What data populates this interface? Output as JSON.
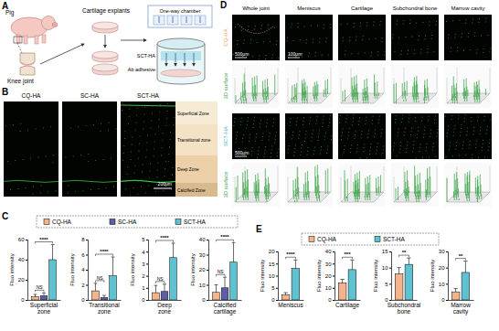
{
  "figure": {
    "panel_labels": [
      "A",
      "B",
      "C",
      "D",
      "E"
    ],
    "panel_a": {
      "labels": [
        "Pig",
        "Knee joint",
        "Cartilage explants",
        "One-way chamber",
        "SCT-HA",
        "Ab adhesive"
      ]
    },
    "panel_b": {
      "columns": [
        "CQ-HA",
        "SC-HA",
        "SCT-HA"
      ],
      "zones": [
        "Superficial Zone",
        "Transitional zone",
        "Deep Zone",
        "Calcified Zone"
      ],
      "scale_bar": "200μm"
    },
    "panel_d": {
      "columns": [
        "Whole joint",
        "Meniscus",
        "Cartilage",
        "Subchondral bone",
        "Marrow cavity"
      ],
      "rows": [
        "CQ-HA",
        "3D surface",
        "SCT-HA",
        "3D surface"
      ],
      "scale_bars": [
        "500μm",
        "100μm",
        "500μm"
      ]
    }
  },
  "chart_data": [
    {
      "type": "bar",
      "categories": [
        "Superficial zone"
      ],
      "ylabel": "Fluo intensity",
      "ylim": [
        0,
        60
      ],
      "yticks": [
        0,
        20,
        40,
        60
      ],
      "series": [
        {
          "name": "CQ-HA",
          "color": "#f2b38d",
          "values": [
            3
          ],
          "errors": [
            2.5
          ]
        },
        {
          "name": "SC-HA",
          "color": "#5c5fa6",
          "values": [
            4
          ],
          "errors": [
            3
          ]
        },
        {
          "name": "SCT-HA",
          "color": "#5ec2d0",
          "values": [
            40
          ],
          "errors": [
            15
          ]
        }
      ],
      "annotations": [
        "NS",
        "****"
      ]
    },
    {
      "type": "bar",
      "categories": [
        "Transitional zone"
      ],
      "ylabel": "Fluo intensity",
      "ylim": [
        0,
        8
      ],
      "yticks": [
        0,
        2,
        4,
        6,
        8
      ],
      "series": [
        {
          "color": "#f2b38d",
          "values": [
            1.2
          ],
          "errors": [
            1
          ]
        },
        {
          "color": "#5c5fa6",
          "values": [
            0.3
          ],
          "errors": [
            0.3
          ]
        },
        {
          "color": "#5ec2d0",
          "values": [
            3.2
          ],
          "errors": [
            2.5
          ]
        }
      ],
      "annotations": [
        "NS",
        "****"
      ]
    },
    {
      "type": "bar",
      "categories": [
        "Deep zone"
      ],
      "ylabel": "Fluo intensity",
      "ylim": [
        0,
        5
      ],
      "yticks": [
        0,
        1,
        2,
        3,
        4,
        5
      ],
      "series": [
        {
          "color": "#f2b38d",
          "values": [
            0.6
          ],
          "errors": [
            0.6
          ]
        },
        {
          "color": "#5c5fa6",
          "values": [
            0.7
          ],
          "errors": [
            0.6
          ]
        },
        {
          "color": "#5ec2d0",
          "values": [
            3.5
          ],
          "errors": [
            1.2
          ]
        }
      ],
      "annotations": [
        "NS",
        "****"
      ]
    },
    {
      "type": "bar",
      "categories": [
        "Calcified cartilage"
      ],
      "ylabel": "Fluo intensity",
      "ylim": [
        0,
        40
      ],
      "yticks": [
        0,
        10,
        20,
        30,
        40
      ],
      "series": [
        {
          "color": "#f2b38d",
          "values": [
            5
          ],
          "errors": [
            5
          ]
        },
        {
          "color": "#5c5fa6",
          "values": [
            8
          ],
          "errors": [
            7
          ]
        },
        {
          "color": "#5ec2d0",
          "values": [
            25
          ],
          "errors": [
            13
          ]
        }
      ],
      "annotations": [
        "NS",
        "****"
      ]
    },
    {
      "type": "bar",
      "categories": [
        "Meniscus"
      ],
      "ylabel": "Fluo intensity",
      "ylim": [
        0,
        20
      ],
      "yticks": [
        0,
        5,
        10,
        15,
        20
      ],
      "series": [
        {
          "name": "CQ-HA",
          "color": "#f2b38d",
          "values": [
            2
          ],
          "errors": [
            1
          ]
        },
        {
          "name": "SCT-HA",
          "color": "#5ec2d0",
          "values": [
            13
          ],
          "errors": [
            3.5
          ]
        }
      ],
      "annotations": [
        "****"
      ]
    },
    {
      "type": "bar",
      "categories": [
        "Cartilage"
      ],
      "ylabel": "Fluo intensity",
      "ylim": [
        0,
        40
      ],
      "yticks": [
        0,
        10,
        20,
        30,
        40
      ],
      "series": [
        {
          "color": "#f2b38d",
          "values": [
            14
          ],
          "errors": [
            3
          ]
        },
        {
          "color": "#5ec2d0",
          "values": [
            25
          ],
          "errors": [
            8
          ]
        }
      ],
      "annotations": [
        "***"
      ]
    },
    {
      "type": "bar",
      "categories": [
        "Subchondral bone"
      ],
      "ylabel": "Fluo intensity",
      "ylim": [
        0,
        15
      ],
      "yticks": [
        0,
        5,
        10,
        15
      ],
      "series": [
        {
          "color": "#f2b38d",
          "values": [
            8
          ],
          "errors": [
            2
          ]
        },
        {
          "color": "#5ec2d0",
          "values": [
            11
          ],
          "errors": [
            2
          ]
        }
      ],
      "annotations": [
        "**"
      ]
    },
    {
      "type": "bar",
      "categories": [
        "Marrow cavity"
      ],
      "ylabel": "Fluo intensity",
      "ylim": [
        0,
        30
      ],
      "yticks": [
        0,
        10,
        20,
        30
      ],
      "series": [
        {
          "color": "#f2b38d",
          "values": [
            5
          ],
          "errors": [
            2
          ]
        },
        {
          "color": "#5ec2d0",
          "values": [
            17
          ],
          "errors": [
            7
          ]
        }
      ],
      "annotations": [
        "**"
      ]
    }
  ]
}
